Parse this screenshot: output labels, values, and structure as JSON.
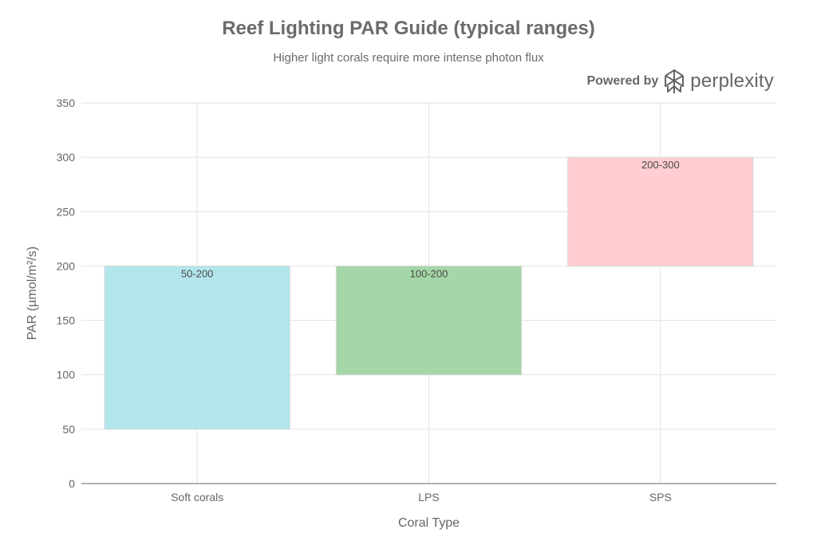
{
  "header": {
    "title": "Reef Lighting PAR Guide (typical ranges)",
    "subtitle": "Higher light corals require more intense photon flux"
  },
  "brand": {
    "prefix": "Powered by",
    "name": "perplexity",
    "icon": "perplexity-logo-icon"
  },
  "chart_data": {
    "type": "bar",
    "title": "Reef Lighting PAR Guide (typical ranges)",
    "subtitle": "Higher light corals require more intense photon flux",
    "xlabel": "Coral Type",
    "ylabel": "PAR (µmol/m²/s)",
    "categories": [
      "Soft corals",
      "LPS",
      "SPS"
    ],
    "ranges": [
      {
        "category": "Soft corals",
        "low": 50,
        "high": 200,
        "label": "50-200",
        "color": "#b3e5ec"
      },
      {
        "category": "LPS",
        "low": 100,
        "high": 200,
        "label": "100-200",
        "color": "#a5d6a7"
      },
      {
        "category": "SPS",
        "low": 200,
        "high": 300,
        "label": "200-300",
        "color": "#ffcdd2"
      }
    ],
    "ylim": [
      0,
      350
    ],
    "yticks": [
      0,
      50,
      100,
      150,
      200,
      250,
      300,
      350
    ],
    "grid": true,
    "legend": "none"
  }
}
